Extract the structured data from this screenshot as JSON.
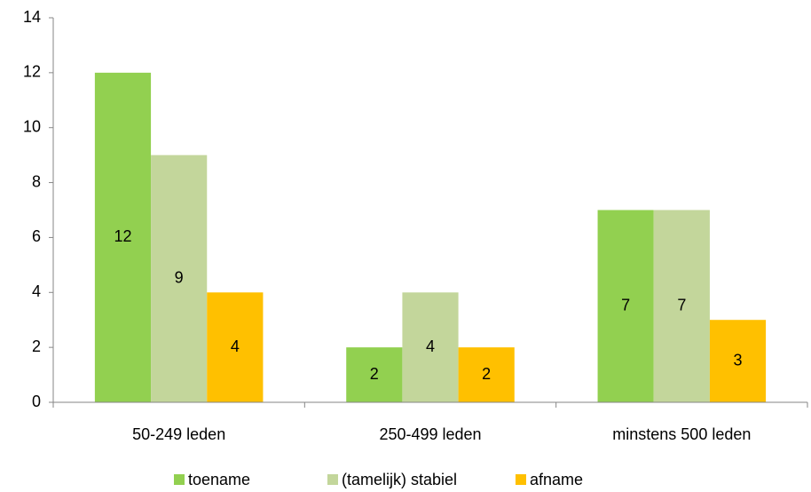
{
  "chart_data": {
    "type": "bar",
    "categories": [
      "50-249 leden",
      "250-499 leden",
      "minstens 500 leden"
    ],
    "series": [
      {
        "name": "toename",
        "color": "#92d050",
        "values": [
          12,
          2,
          7
        ]
      },
      {
        "name": "(tamelijk) stabiel",
        "color": "#c3d69b",
        "values": [
          9,
          4,
          7
        ]
      },
      {
        "name": "afname",
        "color": "#ffc000",
        "values": [
          4,
          2,
          3
        ]
      }
    ],
    "ylim": [
      0,
      14
    ],
    "yticks": [
      0,
      2,
      4,
      6,
      8,
      10,
      12,
      14
    ],
    "grid": false,
    "legend": "bottom"
  }
}
